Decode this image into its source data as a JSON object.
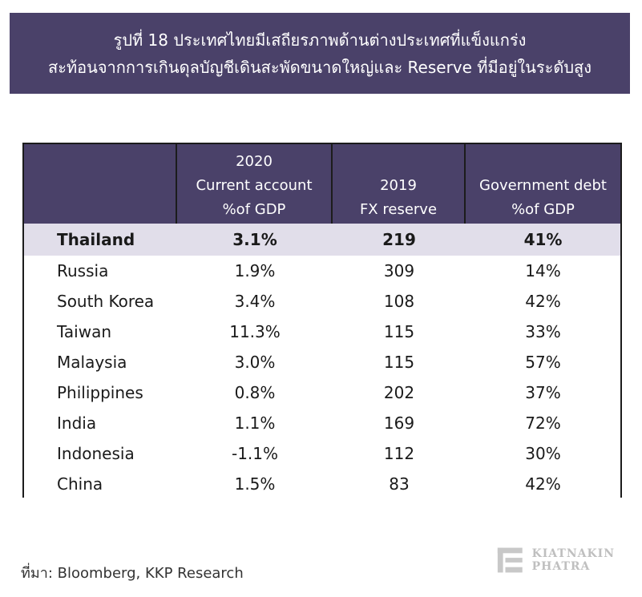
{
  "title": {
    "line1": "รูปที่ 18 ประเทศไทยมีเสถียรภาพด้านต่างประเทศที่แข็งแกร่ง",
    "line2": "สะท้อนจากการเกินดุลบัญชีเดินสะพัดขนาดใหญ่และ Reserve ที่มีอยู่ในระดับสูง"
  },
  "table": {
    "headers": [
      {
        "lines": [
          "",
          "",
          ""
        ]
      },
      {
        "lines": [
          "2020",
          "Current account",
          "%of GDP"
        ]
      },
      {
        "lines": [
          "2019",
          "FX reserve"
        ]
      },
      {
        "lines": [
          "Government debt",
          "%of GDP"
        ]
      }
    ],
    "rows": [
      {
        "country": "Thailand",
        "current_account": "3.1%",
        "fx_reserve": "219",
        "gov_debt": "41%"
      },
      {
        "country": "Russia",
        "current_account": "1.9%",
        "fx_reserve": "309",
        "gov_debt": "14%"
      },
      {
        "country": "South Korea",
        "current_account": "3.4%",
        "fx_reserve": "108",
        "gov_debt": "42%"
      },
      {
        "country": "Taiwan",
        "current_account": "11.3%",
        "fx_reserve": "115",
        "gov_debt": "33%"
      },
      {
        "country": "Malaysia",
        "current_account": "3.0%",
        "fx_reserve": "115",
        "gov_debt": "57%"
      },
      {
        "country": "Philippines",
        "current_account": "0.8%",
        "fx_reserve": "202",
        "gov_debt": "37%"
      },
      {
        "country": "India",
        "current_account": "1.1%",
        "fx_reserve": "169",
        "gov_debt": "72%"
      },
      {
        "country": "Indonesia",
        "current_account": "-1.1%",
        "fx_reserve": "112",
        "gov_debt": "30%"
      },
      {
        "country": "China",
        "current_account": "1.5%",
        "fx_reserve": "83",
        "gov_debt": "42%"
      }
    ]
  },
  "source": "ที่มา: Bloomberg, KKP Research",
  "logo": {
    "line1": "KIATNAKIN",
    "line2": "PHATRA",
    "icon": "kkp-logo-icon",
    "color": "#bfbfbf"
  },
  "colors": {
    "header_bg": "#4a4169",
    "highlight_row_bg": "#e1deea"
  }
}
